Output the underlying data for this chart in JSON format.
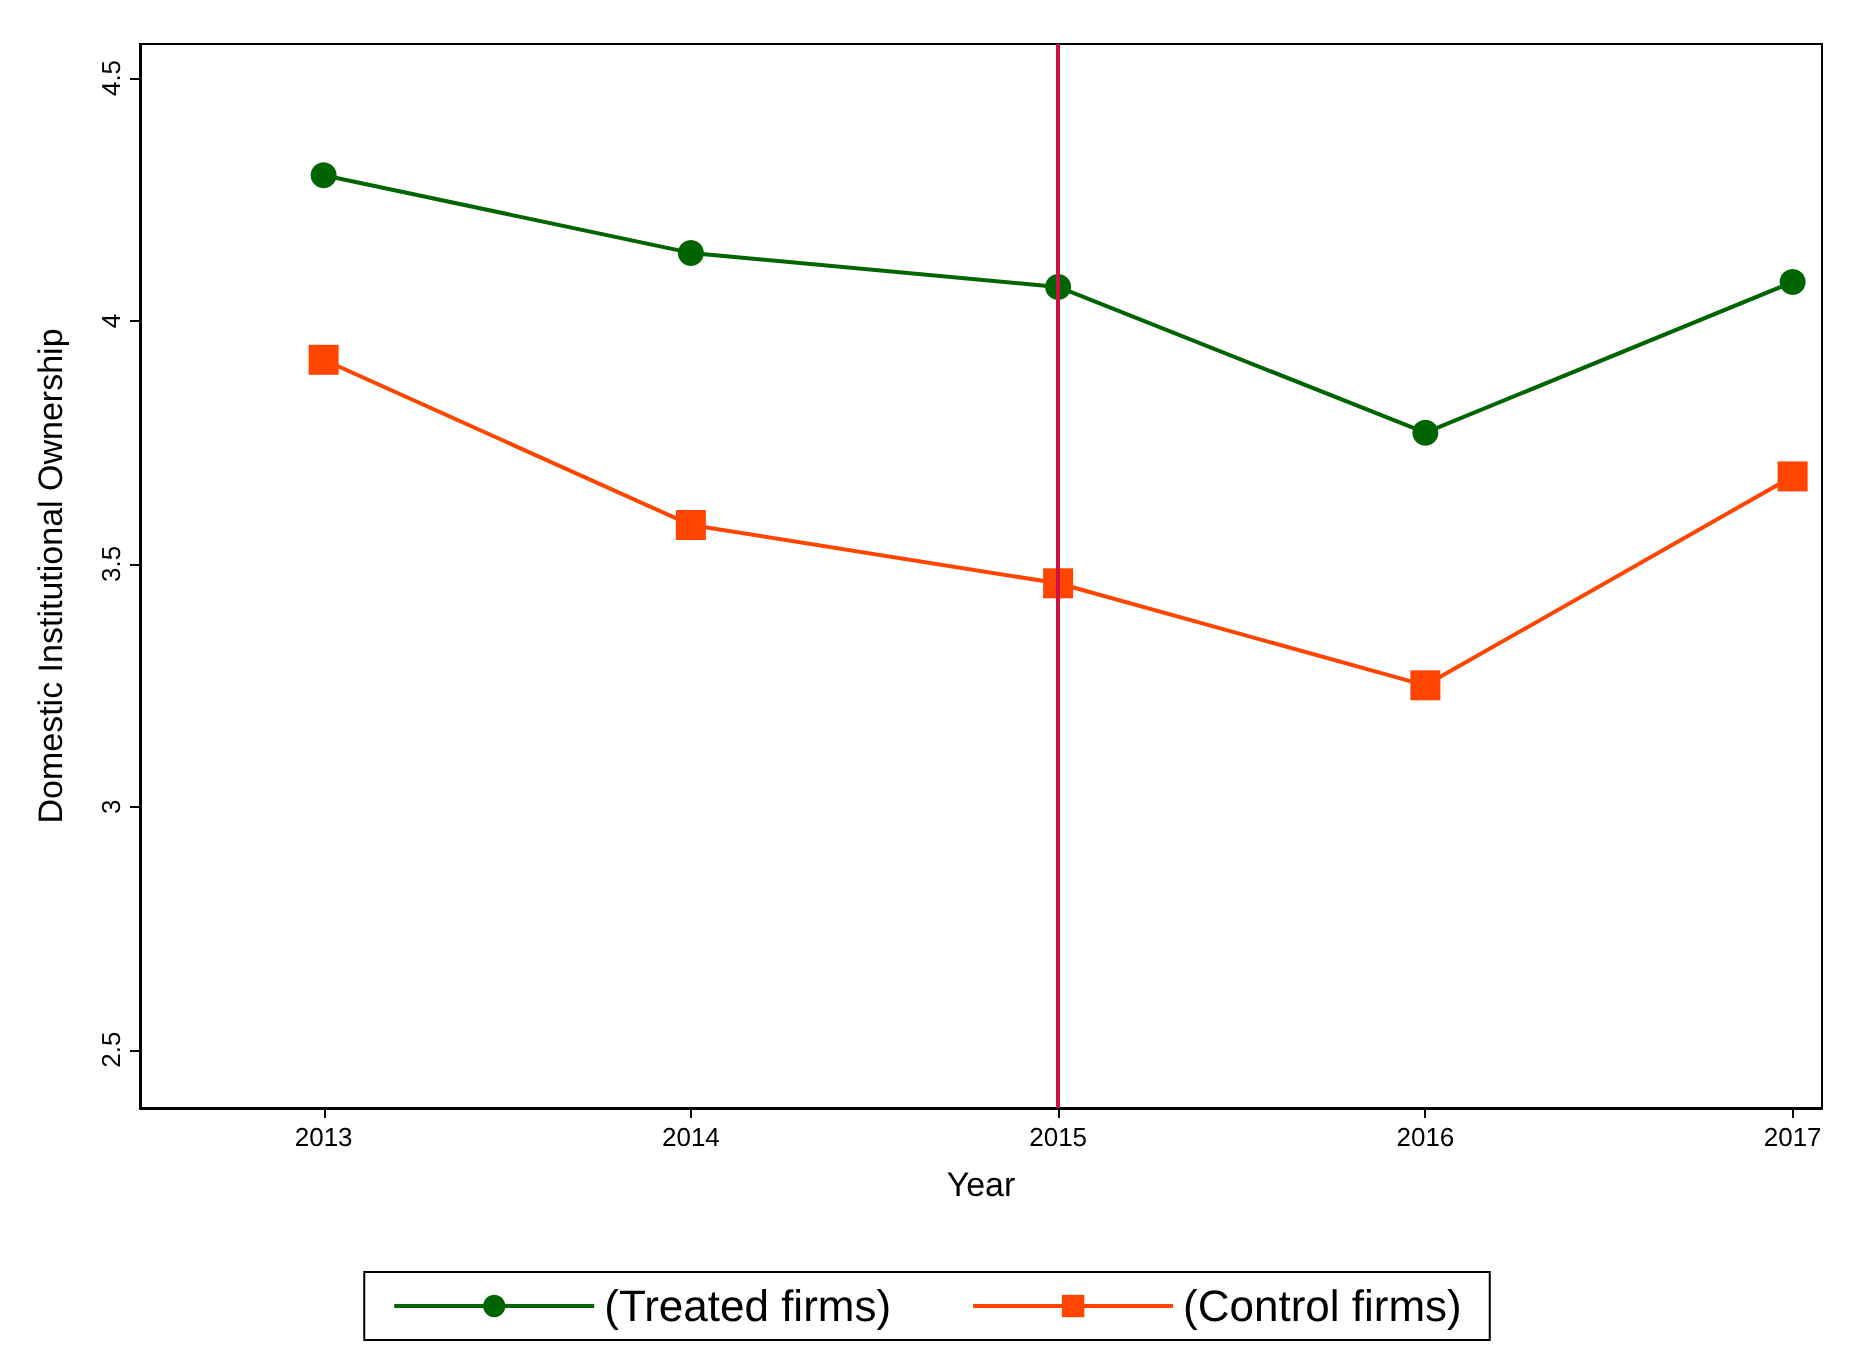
{
  "chart_data": {
    "type": "line",
    "xlabel": "Year",
    "ylabel": "Domestic Institutional Ownership",
    "x": [
      2013,
      2014,
      2015,
      2016,
      2017
    ],
    "series": [
      {
        "name": "(Treated firms)",
        "color": "#006400",
        "marker": "circle",
        "values": [
          4.3,
          4.14,
          4.07,
          3.77,
          4.08
        ]
      },
      {
        "name": "(Control firms)",
        "color": "#ff4500",
        "marker": "square",
        "values": [
          3.92,
          3.58,
          3.46,
          3.25,
          3.68
        ]
      }
    ],
    "xlim": [
      2012.5,
      2017.08
    ],
    "xticks": [
      2013,
      2014,
      2015,
      2016,
      2017
    ],
    "ylim": [
      2.38,
      4.57
    ],
    "yticks": [
      2.5,
      3,
      3.5,
      4,
      4.5
    ],
    "ref_lines": [
      {
        "axis": "x",
        "value": 2015,
        "color": "#cc1144"
      }
    ],
    "grid": false,
    "legend": "bottom"
  }
}
